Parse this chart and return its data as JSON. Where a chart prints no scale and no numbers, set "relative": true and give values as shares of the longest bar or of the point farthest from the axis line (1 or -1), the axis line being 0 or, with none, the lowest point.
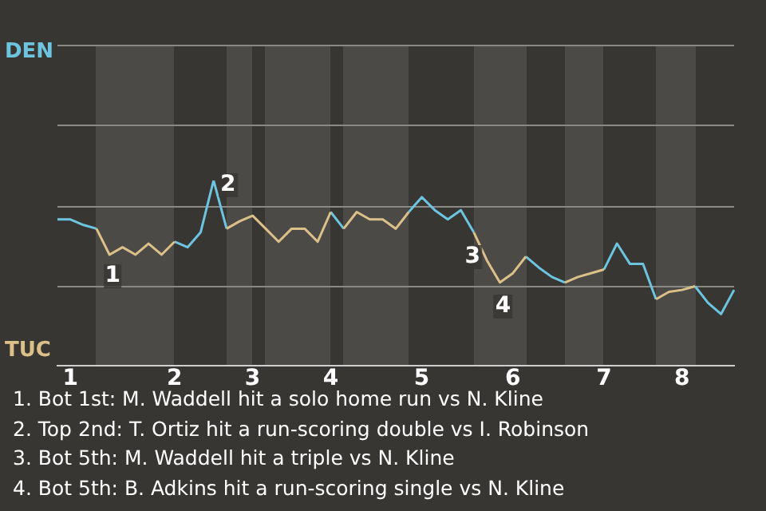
{
  "chart_data": {
    "type": "line",
    "relative": true,
    "categories": [
      null,
      "1",
      null,
      null,
      null,
      null,
      null,
      null,
      null,
      "2",
      null,
      null,
      null,
      null,
      null,
      "3",
      null,
      null,
      null,
      null,
      null,
      "4",
      null,
      null,
      null,
      null,
      null,
      null,
      "5",
      null,
      null,
      null,
      null,
      null,
      null,
      "6",
      null,
      null,
      null,
      null,
      null,
      null,
      "7",
      null,
      null,
      null,
      null,
      null,
      "8",
      null,
      null,
      null,
      null
    ],
    "series": [
      {
        "color": "#6cc4de",
        "values": [
          0.79,
          0.79,
          0.76,
          0.74,
          null,
          null,
          null,
          null,
          null,
          0.67,
          0.64,
          0.72,
          1,
          0.74,
          null,
          null,
          null,
          null,
          null,
          null,
          null,
          0.83,
          0.74,
          null,
          null,
          null,
          null,
          0.83,
          0.91,
          0.84,
          0.79,
          0.84,
          0.72,
          null,
          null,
          null,
          0.59,
          0.53,
          0.48,
          0.45,
          null,
          null,
          0.52,
          0.66,
          0.55,
          0.55,
          0.36,
          null,
          null,
          0.43,
          0.34,
          0.28,
          0.41
        ]
      },
      {
        "color": "#dcc08a",
        "values": [
          null,
          null,
          null,
          0.74,
          0.6,
          0.64,
          0.6,
          0.66,
          0.6,
          0.67,
          null,
          null,
          null,
          0.74,
          0.78,
          0.81,
          0.74,
          0.67,
          0.74,
          0.74,
          0.67,
          0.83,
          0.74,
          0.83,
          0.79,
          0.79,
          0.74,
          0.83,
          null,
          null,
          null,
          null,
          0.72,
          0.57,
          0.45,
          0.5,
          0.59,
          null,
          null,
          0.45,
          0.48,
          0.5,
          0.52,
          null,
          null,
          null,
          0.36,
          0.4,
          0.41,
          0.43,
          null,
          null,
          null
        ]
      }
    ],
    "marker": "none",
    "line_style": "solid",
    "ref_lines": [
      {
        "axis": "y",
        "value": 0.86,
        "color": "#8a8986"
      },
      {
        "axis": "y",
        "value": 0.43,
        "color": "#8a8986"
      }
    ],
    "annotations": [
      "DEN",
      "TUC",
      "1",
      "2",
      "3",
      "4",
      "1. Bot 1st: M. Waddell hit a solo home run vs N. Kline",
      "2. Top 2nd: T. Ortiz hit a run-scoring double vs I. Robinson",
      "3. Bot 5th: M. Waddell hit a triple vs N. Kline",
      "4. Bot 5th: B. Adkins hit a run-scoring single vs N. Kline"
    ]
  }
}
